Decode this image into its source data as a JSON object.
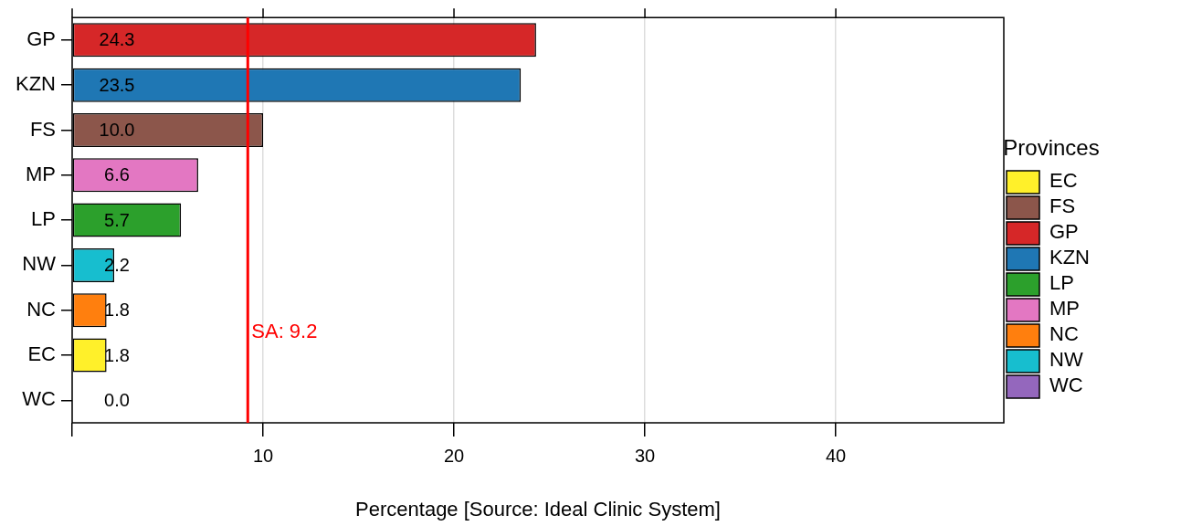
{
  "chart_data": {
    "type": "bar",
    "orientation": "horizontal",
    "stacked": true,
    "xlabel": "Percentage [Source: Ideal Clinic System]",
    "categories": [
      "GP",
      "KZN",
      "FS",
      "MP",
      "LP",
      "NW",
      "NC",
      "EC",
      "WC"
    ],
    "series": [
      {
        "name": "EC",
        "color": "#fff02a",
        "values": [
          null,
          null,
          null,
          null,
          null,
          null,
          null,
          1.8,
          null
        ],
        "value_labels": [
          null,
          null,
          null,
          null,
          null,
          null,
          null,
          "1.8",
          null
        ]
      },
      {
        "name": "FS",
        "color": "#8c564b",
        "values": [
          null,
          null,
          10.0,
          null,
          null,
          null,
          null,
          null,
          null
        ],
        "value_labels": [
          null,
          null,
          "10.0",
          null,
          null,
          null,
          null,
          null,
          null
        ]
      },
      {
        "name": "GP",
        "color": "#d62728",
        "values": [
          24.3,
          null,
          null,
          null,
          null,
          null,
          null,
          null,
          null
        ],
        "value_labels": [
          "24.3",
          null,
          null,
          null,
          null,
          null,
          null,
          null,
          null
        ]
      },
      {
        "name": "KZN",
        "color": "#1f77b4",
        "values": [
          null,
          23.5,
          null,
          null,
          null,
          null,
          null,
          null,
          null
        ],
        "value_labels": [
          null,
          "23.5",
          null,
          null,
          null,
          null,
          null,
          null,
          null
        ]
      },
      {
        "name": "LP",
        "color": "#2ca02c",
        "values": [
          null,
          null,
          null,
          null,
          5.7,
          null,
          null,
          null,
          null
        ],
        "value_labels": [
          null,
          null,
          null,
          null,
          "5.7",
          null,
          null,
          null,
          null
        ]
      },
      {
        "name": "MP",
        "color": "#e377c2",
        "values": [
          null,
          null,
          null,
          6.6,
          null,
          null,
          null,
          null,
          null
        ],
        "value_labels": [
          null,
          null,
          null,
          "6.6",
          null,
          null,
          null,
          null,
          null
        ]
      },
      {
        "name": "NC",
        "color": "#ff7f0e",
        "values": [
          null,
          null,
          null,
          null,
          null,
          null,
          1.8,
          null,
          null
        ],
        "value_labels": [
          null,
          null,
          null,
          null,
          null,
          null,
          "1.8",
          null,
          null
        ]
      },
      {
        "name": "NW",
        "color": "#17becf",
        "values": [
          null,
          null,
          null,
          null,
          null,
          2.2,
          null,
          null,
          null
        ],
        "value_labels": [
          null,
          null,
          null,
          null,
          null,
          "2.2",
          null,
          null,
          null
        ]
      },
      {
        "name": "WC",
        "color": "#9467bd",
        "values": [
          null,
          null,
          null,
          null,
          null,
          null,
          null,
          null,
          0.0
        ],
        "value_labels": [
          null,
          null,
          null,
          null,
          null,
          null,
          null,
          null,
          "0.0"
        ]
      }
    ],
    "xlim": [
      0,
      48.8
    ],
    "xticks": [
      {
        "value": 0,
        "label": null
      },
      10,
      20,
      30,
      40
    ],
    "ref_lines": [
      {
        "axis": "x",
        "value": 9.2,
        "label": "SA: 9.2",
        "color": "#ff0000"
      }
    ],
    "grid": "x",
    "legend": "right",
    "legend_title": "Provinces"
  }
}
